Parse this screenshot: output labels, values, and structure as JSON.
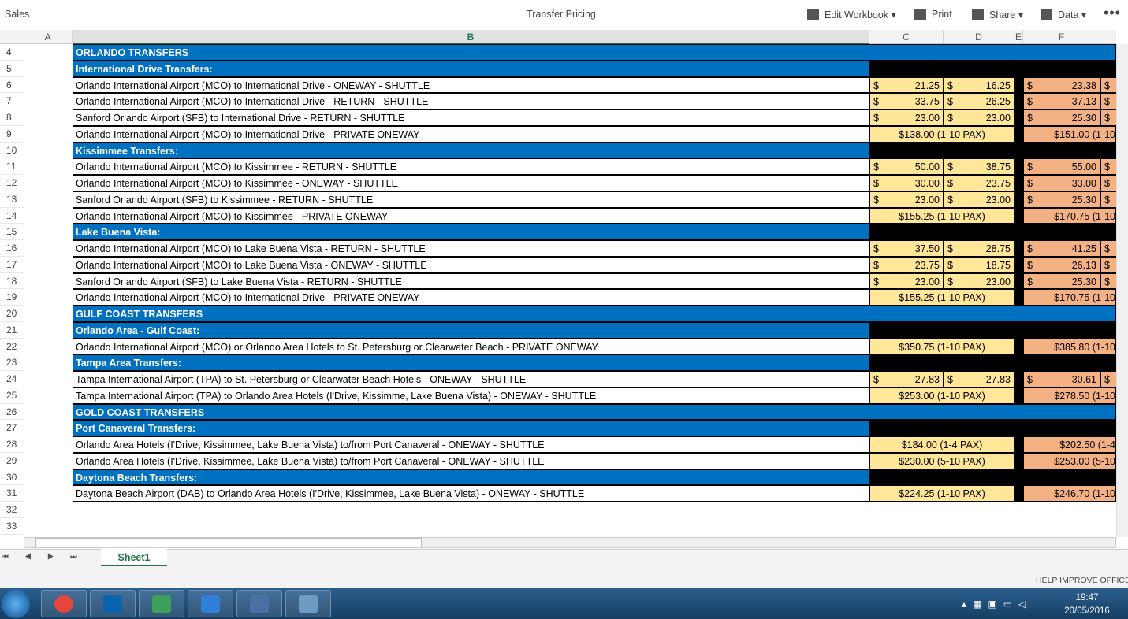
{
  "app_bar": {
    "app": "Sales",
    "title": "Transfer Pricing",
    "menu": [
      "Edit Workbook",
      "Print",
      "Share",
      "Data"
    ]
  },
  "columns": [
    "A",
    "B",
    "C",
    "D",
    "E",
    "F"
  ],
  "currency": "$",
  "rows": [
    {
      "n": 4,
      "kind": "section",
      "label": "ORLANDO TRANSFERS"
    },
    {
      "n": 5,
      "kind": "subsection",
      "label": "International Drive Transfers:"
    },
    {
      "n": 6,
      "kind": "item",
      "label": "Orlando International Airport (MCO) to International Drive - ONEWAY - SHUTTLE",
      "c": "21.25",
      "d": "16.25",
      "f": "23.38"
    },
    {
      "n": 7,
      "kind": "item",
      "label": "Orlando International Airport (MCO) to International Drive - RETURN - SHUTTLE",
      "c": "33.75",
      "d": "26.25",
      "f": "37.13"
    },
    {
      "n": 8,
      "kind": "item",
      "label": "Sanford Orlando Airport (SFB) to International Drive - RETURN - SHUTTLE",
      "c": "23.00",
      "d": "23.00",
      "f": "25.30"
    },
    {
      "n": 9,
      "kind": "item",
      "label": "Orlando International Airport (MCO) to International Drive - PRIVATE ONEWAY",
      "cd": "$138.00 (1-10 PAX)",
      "f": "$151.00 (1-10"
    },
    {
      "n": 10,
      "kind": "subsection",
      "label": "Kissimmee Transfers:"
    },
    {
      "n": 11,
      "kind": "item",
      "label": "Orlando International Airport (MCO) to Kissimmee - RETURN - SHUTTLE",
      "c": "50.00",
      "d": "38.75",
      "f": "55.00"
    },
    {
      "n": 12,
      "kind": "item",
      "label": "Orlando International Airport (MCO) to Kissimmee - ONEWAY - SHUTTLE",
      "c": "30.00",
      "d": "23.75",
      "f": "33.00"
    },
    {
      "n": 13,
      "kind": "item",
      "label": "Sanford Orlando Airport (SFB) to Kissimmee - RETURN - SHUTTLE",
      "c": "23.00",
      "d": "23.00",
      "f": "25.30"
    },
    {
      "n": 14,
      "kind": "item",
      "label": "Orlando International Airport (MCO) to Kissimmee - PRIVATE ONEWAY",
      "cd": "$155.25 (1-10 PAX)",
      "f": "$170.75 (1-10"
    },
    {
      "n": 15,
      "kind": "subsection",
      "label": "Lake Buena Vista:"
    },
    {
      "n": 16,
      "kind": "item",
      "label": "Orlando International Airport (MCO) to Lake Buena Vista - RETURN - SHUTTLE",
      "c": "37.50",
      "d": "28.75",
      "f": "41.25"
    },
    {
      "n": 17,
      "kind": "item",
      "label": "Orlando International Airport (MCO) to Lake Buena Vista - ONEWAY - SHUTTLE",
      "c": "23.75",
      "d": "18.75",
      "f": "26.13"
    },
    {
      "n": 18,
      "kind": "item",
      "label": "Sanford Orlando Airport (SFB) to Lake Buena Vista - RETURN - SHUTTLE",
      "c": "23.00",
      "d": "23.00",
      "f": "25.30"
    },
    {
      "n": 19,
      "kind": "item",
      "label": "Orlando International Airport (MCO) to International Drive - PRIVATE ONEWAY",
      "cd": "$155.25 (1-10 PAX)",
      "f": "$170.75 (1-10"
    },
    {
      "n": 20,
      "kind": "section",
      "label": "GULF COAST TRANSFERS"
    },
    {
      "n": 21,
      "kind": "subsection",
      "label": "Orlando Area - Gulf Coast:"
    },
    {
      "n": 22,
      "kind": "item",
      "label": "Orlando International Airport (MCO) or Orlando Area Hotels to St. Petersburg or Clearwater Beach - PRIVATE ONEWAY",
      "cd": "$350.75 (1-10 PAX)",
      "f": "$385.80 (1-10"
    },
    {
      "n": 23,
      "kind": "subsection",
      "label": "Tampa Area Transfers:"
    },
    {
      "n": 24,
      "kind": "item",
      "label": "Tampa International Airport (TPA) to St. Petersburg or Clearwater Beach Hotels - ONEWAY - SHUTTLE",
      "c": "27.83",
      "d": "27.83",
      "f": "30.61"
    },
    {
      "n": 25,
      "kind": "item",
      "label": "Tampa International Airport (TPA) to Orlando Area Hotels (I'Drive, Kissimme, Lake Buena Vista) - ONEWAY - SHUTTLE",
      "cd": "$253.00 (1-10 PAX)",
      "f": "$278.50 (1-10"
    },
    {
      "n": 26,
      "kind": "section",
      "label": "GOLD COAST TRANSFERS"
    },
    {
      "n": 27,
      "kind": "subsection",
      "label": "Port Canaveral Transfers:"
    },
    {
      "n": 28,
      "kind": "item",
      "label": "Orlando Area Hotels (I'Drive, Kissimmee, Lake Buena Vista) to/from Port Canaveral - ONEWAY - SHUTTLE",
      "cd": "$184.00 (1-4 PAX)",
      "f": "$202.50 (1-4"
    },
    {
      "n": 29,
      "kind": "item",
      "label": "Orlando Area Hotels (I'Drive, Kissimmee, Lake Buena Vista) to/from Port Canaveral - ONEWAY - SHUTTLE",
      "cd": "$230.00 (5-10 PAX)",
      "f": "$253.00 (5-10"
    },
    {
      "n": 30,
      "kind": "subsection",
      "label": "Daytona Beach Transfers:"
    },
    {
      "n": 31,
      "kind": "item",
      "label": "Daytona Beach Airport (DAB) to Orlando Area Hotels (I'Drive, Kissimmee, Lake Buena Vista) - ONEWAY - SHUTTLE",
      "cd": "$224.25 (1-10 PAX)",
      "f": "$246.70 (1-10"
    },
    {
      "n": 32
    },
    {
      "n": 33
    }
  ],
  "sheet_tab": "Sheet1",
  "status_bar": "HELP IMPROVE OFFICE",
  "taskbar": {
    "time": "19:47",
    "date": "20/05/2016"
  }
}
